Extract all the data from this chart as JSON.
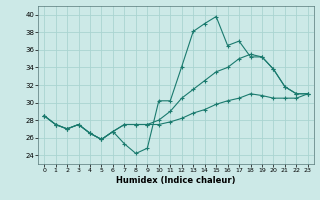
{
  "xlabel": "Humidex (Indice chaleur)",
  "background_color": "#cce9e7",
  "grid_color": "#aad4d1",
  "line_color": "#1a7a6e",
  "xlim": [
    -0.5,
    23.5
  ],
  "ylim": [
    23,
    41
  ],
  "yticks": [
    24,
    26,
    28,
    30,
    32,
    34,
    36,
    38,
    40
  ],
  "xticks": [
    0,
    1,
    2,
    3,
    4,
    5,
    6,
    7,
    8,
    9,
    10,
    11,
    12,
    13,
    14,
    15,
    16,
    17,
    18,
    19,
    20,
    21,
    22,
    23
  ],
  "x": [
    0,
    1,
    2,
    3,
    4,
    5,
    6,
    7,
    8,
    9,
    10,
    11,
    12,
    13,
    14,
    15,
    16,
    17,
    18,
    19,
    20,
    21,
    22,
    23
  ],
  "y_main": [
    28.5,
    27.5,
    27.0,
    27.5,
    26.5,
    25.8,
    26.7,
    25.3,
    24.2,
    24.8,
    30.2,
    30.2,
    34.1,
    38.1,
    39.0,
    39.8,
    36.5,
    37.0,
    35.2,
    35.2,
    33.8,
    31.8,
    31.0,
    31.0
  ],
  "y_line2": [
    28.5,
    27.5,
    27.0,
    27.5,
    26.5,
    25.8,
    26.7,
    27.5,
    27.5,
    27.5,
    28.0,
    29.0,
    30.5,
    31.5,
    32.5,
    33.5,
    34.0,
    35.0,
    35.5,
    35.2,
    33.8,
    31.8,
    31.0,
    31.0
  ],
  "y_line3": [
    28.5,
    27.5,
    27.0,
    27.5,
    26.5,
    25.8,
    26.7,
    27.5,
    27.5,
    27.5,
    27.5,
    27.8,
    28.2,
    28.8,
    29.2,
    29.8,
    30.2,
    30.5,
    31.0,
    30.8,
    30.5,
    30.5,
    30.5,
    31.0
  ]
}
